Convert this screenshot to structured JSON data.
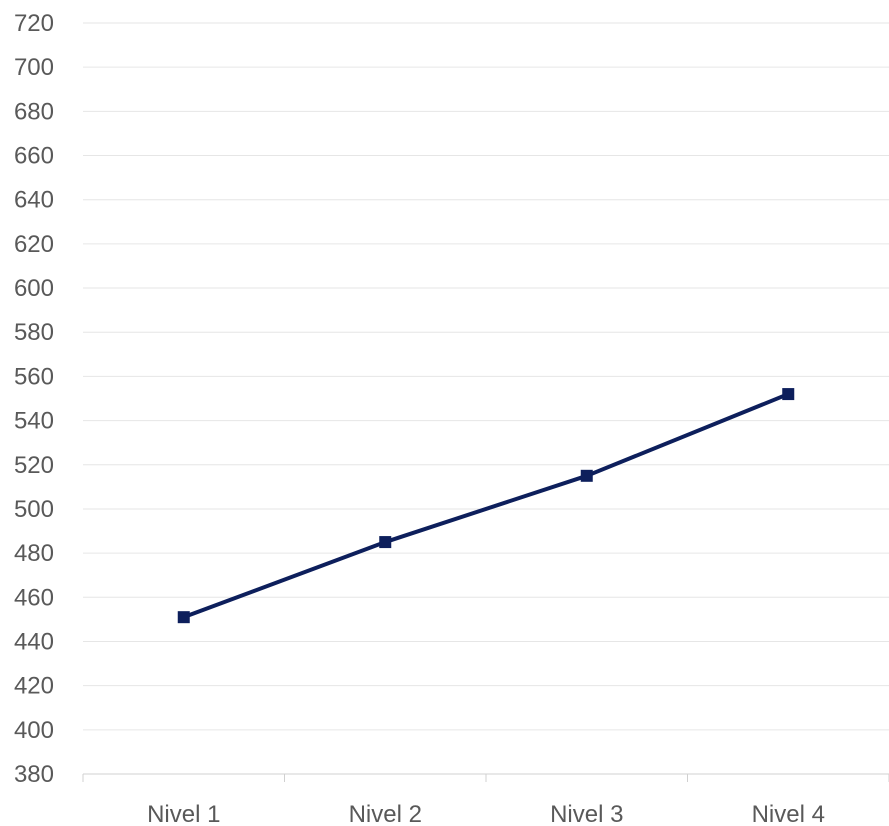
{
  "chart_data": {
    "type": "line",
    "categories": [
      "Nivel 1",
      "Nivel 2",
      "Nivel 3",
      "Nivel 4"
    ],
    "series": [
      {
        "values": [
          451,
          485,
          515,
          552
        ]
      }
    ],
    "ylim": [
      380,
      720
    ],
    "yticks": [
      380,
      400,
      420,
      440,
      460,
      480,
      500,
      520,
      540,
      560,
      580,
      600,
      620,
      640,
      660,
      680,
      700,
      720
    ],
    "title": "",
    "xlabel": "",
    "ylabel": "",
    "grid": true,
    "legend": "none",
    "marker": "square",
    "colors": {
      "line": "#0d1f5c",
      "grid": "#e6e6e6",
      "axis": "#d0d0d0",
      "text": "#595959"
    }
  }
}
